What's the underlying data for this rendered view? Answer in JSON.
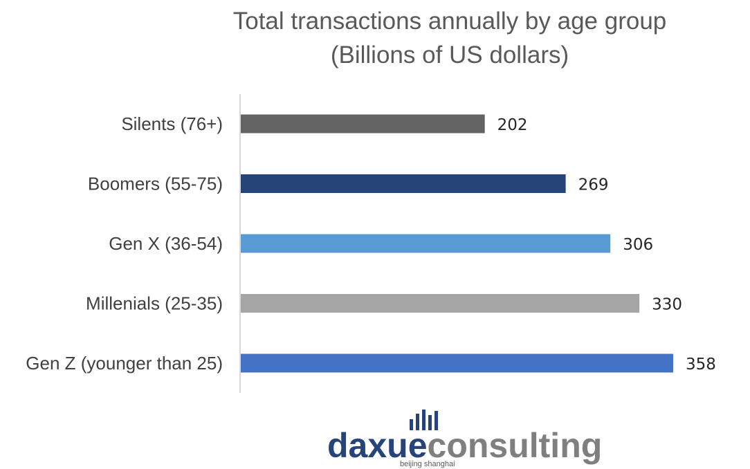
{
  "chart_data": {
    "type": "bar",
    "orientation": "horizontal",
    "title": "Total transactions annually by age group",
    "subtitle": "(Billions of US dollars)",
    "categories": [
      "Silents (76+)",
      "Boomers (55-75)",
      "Gen X (36-54)",
      "Millenials (25-35)",
      "Gen Z (younger than 25)"
    ],
    "values": [
      202,
      269,
      306,
      330,
      358
    ],
    "colors": [
      "#636363",
      "#264478",
      "#5B9BD5",
      "#A5A5A5",
      "#4472C4"
    ],
    "xlim": [
      0,
      358
    ],
    "grid": false,
    "legend": "none"
  },
  "logo": {
    "text_part1": "daxue",
    "text_part2": "consulting",
    "subtitle": "beijing shanghai",
    "color_part1": "#264478",
    "color_part2": "#7f7f7f"
  }
}
